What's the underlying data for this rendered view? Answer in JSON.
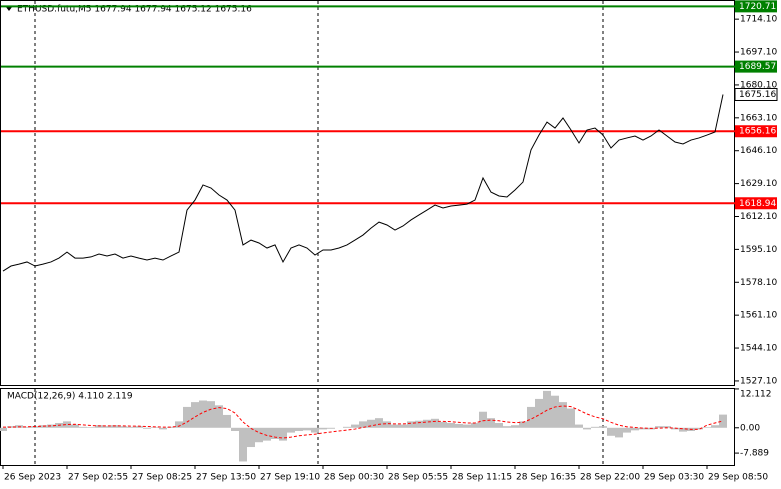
{
  "chart_data": [
    {
      "type": "line",
      "title": "ETHUSD.futu,M5  1677.94 1677.94 1675.12 1675.16",
      "color": "#000000",
      "categories": [
        "26 Sep 2023",
        null,
        null,
        null,
        null,
        null,
        null,
        null,
        "27 Sep 02:55",
        null,
        null,
        null,
        null,
        null,
        null,
        null,
        "27 Sep 08:25",
        null,
        null,
        null,
        null,
        null,
        null,
        null,
        "27 Sep 13:50",
        null,
        null,
        null,
        null,
        null,
        null,
        null,
        "27 Sep 19:10",
        null,
        null,
        null,
        null,
        null,
        null,
        null,
        "28 Sep 00:30",
        null,
        null,
        null,
        null,
        null,
        null,
        null,
        "28 Sep 05:55",
        null,
        null,
        null,
        null,
        null,
        null,
        null,
        "28 Sep 11:15",
        null,
        null,
        null,
        null,
        null,
        null,
        null,
        "28 Sep 16:35",
        null,
        null,
        null,
        null,
        null,
        null,
        null,
        "28 Sep 22:00",
        null,
        null,
        null,
        null,
        null,
        null,
        null,
        "29 Sep 03:30",
        null,
        null,
        null,
        null,
        null,
        null,
        null,
        "29 Sep 08:50",
        null,
        null
      ],
      "values": [
        1583.9,
        1586.5,
        1587.5,
        1588.6,
        1586.5,
        1587.5,
        1588.6,
        1590.6,
        1593.7,
        1590.6,
        1590.6,
        1591.2,
        1592.7,
        1591.7,
        1592.7,
        1590.6,
        1591.7,
        1590.6,
        1589.6,
        1590.6,
        1589.6,
        1591.7,
        1593.7,
        1615.4,
        1620.6,
        1628.4,
        1626.8,
        1623.2,
        1620.6,
        1615.4,
        1597.4,
        1599.9,
        1598.4,
        1595.8,
        1597.4,
        1588.6,
        1595.8,
        1597.4,
        1595.8,
        1592.2,
        1594.8,
        1594.8,
        1595.8,
        1597.4,
        1599.9,
        1602.5,
        1606.1,
        1609.2,
        1607.7,
        1605.1,
        1607.2,
        1610.3,
        1612.9,
        1615.4,
        1618.0,
        1616.5,
        1617.5,
        1618.0,
        1618.5,
        1620.6,
        1632.0,
        1624.7,
        1622.7,
        1622.2,
        1625.8,
        1629.9,
        1646.5,
        1654.2,
        1660.9,
        1657.8,
        1663.0,
        1656.8,
        1650.1,
        1656.8,
        1657.8,
        1654.2,
        1647.5,
        1651.6,
        1652.7,
        1653.7,
        1651.6,
        1653.7,
        1656.8,
        1653.7,
        1650.6,
        1649.6,
        1651.6,
        1652.7,
        1654.2,
        1655.8,
        1675.16
      ],
      "ylim": [
        1525,
        1724
      ],
      "yticks": [
        {
          "value": 1714.1,
          "label": "1714.10"
        },
        {
          "value": 1697.1,
          "label": "1697.10"
        },
        {
          "value": 1680.1,
          "label": "1680.10"
        },
        {
          "value": 1663.1,
          "label": "1663.10"
        },
        {
          "value": 1646.1,
          "label": "1646.10"
        },
        {
          "value": 1629.1,
          "label": "1629.10"
        },
        {
          "value": 1612.1,
          "label": "1612.10"
        },
        {
          "value": 1595.1,
          "label": "1595.10"
        },
        {
          "value": 1578.1,
          "label": "1578.10"
        },
        {
          "value": 1561.1,
          "label": "1561.10"
        },
        {
          "value": 1544.1,
          "label": "1544.10"
        },
        {
          "value": 1527.1,
          "label": "1527.10"
        }
      ],
      "levels": [
        {
          "value": 1720.71,
          "color": "#008000"
        },
        {
          "value": 1689.57,
          "color": "#008000"
        },
        {
          "value": 1656.16,
          "color": "#ff0000"
        },
        {
          "value": 1618.94,
          "color": "#ff0000"
        }
      ],
      "price_label": 1675.16,
      "grid": false
    },
    {
      "type": "macd",
      "title": "MACD(12,26,9) 4.110 2.119",
      "ylim": [
        -11.6,
        12.4
      ],
      "yticks": [
        12.112,
        {
          "value": 0,
          "label": "0.00"
        },
        -7.889
      ],
      "series": [
        {
          "color": "#c0c0c0",
          "values": [
            -1,
            0.5,
            0.8,
            0.3,
            0.5,
            0.8,
            1.0,
            1.5,
            2.0,
            1.0,
            0.3,
            0.2,
            0.8,
            0.5,
            0.8,
            0.5,
            0.3,
            0.5,
            -0.3,
            0.2,
            -0.5,
            0.3,
            2.0,
            6.5,
            8.0,
            8.5,
            8.3,
            7.0,
            4.0,
            -1.0,
            -10.5,
            -6.0,
            -4.5,
            -4.0,
            -3.5,
            -4.0,
            -1.5,
            -1.0,
            -0.8,
            -1.5,
            -0.5,
            -0.3,
            0.0,
            0.3,
            1.0,
            2.0,
            2.5,
            3.0,
            2.0,
            1.0,
            1.0,
            2.0,
            2.2,
            2.5,
            2.8,
            1.8,
            1.5,
            1.2,
            1.0,
            1.5,
            5.0,
            3.0,
            1.5,
            0.5,
            0.8,
            2.0,
            6.5,
            9.0,
            11.5,
            10.0,
            8.0,
            6.0,
            1.0,
            -0.5,
            0.3,
            0.5,
            -2.5,
            -3.0,
            -1.5,
            -0.8,
            -0.5,
            -0.5,
            0.5,
            0.5,
            -0.5,
            -1.2,
            -1.0,
            -0.5,
            0.2,
            0.8,
            4.11
          ]
        },
        {
          "color": "#ff0000",
          "values": [
            0.2,
            0.2,
            0.3,
            0.3,
            0.4,
            0.5,
            0.6,
            0.8,
            1.0,
            1.1,
            0.9,
            0.7,
            0.6,
            0.6,
            0.6,
            0.6,
            0.5,
            0.5,
            0.4,
            0.3,
            0.2,
            0.2,
            0.5,
            1.8,
            3.4,
            4.8,
            5.8,
            6.3,
            6.0,
            4.6,
            1.8,
            -0.2,
            -1.5,
            -2.4,
            -2.9,
            -3.2,
            -2.9,
            -2.5,
            -2.2,
            -2.0,
            -1.6,
            -1.3,
            -1.0,
            -0.7,
            -0.4,
            0.1,
            0.6,
            1.1,
            1.3,
            1.2,
            1.2,
            1.4,
            1.6,
            1.8,
            2.0,
            2.0,
            1.9,
            1.7,
            1.5,
            1.5,
            2.2,
            2.4,
            2.2,
            1.8,
            1.6,
            1.7,
            2.7,
            4.0,
            5.5,
            6.5,
            6.8,
            6.6,
            5.5,
            4.3,
            3.4,
            2.8,
            1.7,
            0.8,
            0.3,
            0.1,
            -0.1,
            -0.2,
            -0.1,
            0.0,
            -0.1,
            -0.3,
            -0.5,
            -0.5,
            0.8,
            1.5,
            2.119
          ]
        }
      ]
    }
  ]
}
